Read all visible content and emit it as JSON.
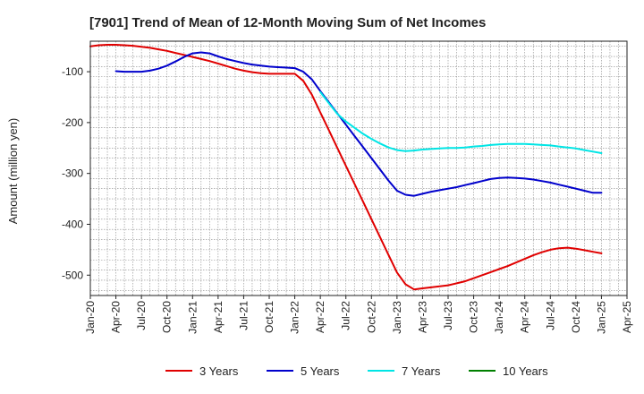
{
  "chart_data": {
    "type": "line",
    "title": "[7901]  Trend of Mean of 12-Month Moving Sum of Net Incomes",
    "ylabel": "Amount (million yen)",
    "xlabel": "",
    "x_ticks": [
      "Jan-20",
      "Apr-20",
      "Jul-20",
      "Oct-20",
      "Jan-21",
      "Apr-21",
      "Jul-21",
      "Oct-21",
      "Jan-22",
      "Apr-22",
      "Jul-22",
      "Oct-22",
      "Jan-23",
      "Apr-23",
      "Jul-23",
      "Oct-23",
      "Jan-24",
      "Apr-24",
      "Jul-24",
      "Oct-24",
      "Jan-25",
      "Apr-25"
    ],
    "y_ticks": [
      -100,
      -200,
      -300,
      -400,
      -500
    ],
    "ylim": [
      -540,
      -40
    ],
    "grid": true,
    "legend_position": "bottom",
    "series": [
      {
        "name": "3 Years",
        "color": "#e00000",
        "x": [
          "Jan-20",
          "Feb-20",
          "Mar-20",
          "Apr-20",
          "May-20",
          "Jun-20",
          "Jul-20",
          "Aug-20",
          "Sep-20",
          "Oct-20",
          "Nov-20",
          "Dec-20",
          "Jan-21",
          "Feb-21",
          "Mar-21",
          "Apr-21",
          "May-21",
          "Jun-21",
          "Jul-21",
          "Aug-21",
          "Sep-21",
          "Oct-21",
          "Nov-21",
          "Dec-21",
          "Jan-22",
          "Feb-22",
          "Mar-22",
          "Apr-22",
          "May-22",
          "Jun-22",
          "Jul-22",
          "Aug-22",
          "Sep-22",
          "Oct-22",
          "Nov-22",
          "Dec-22",
          "Jan-23",
          "Feb-23",
          "Mar-23",
          "Apr-23",
          "May-23",
          "Jun-23",
          "Jul-23",
          "Aug-23",
          "Sep-23",
          "Oct-23",
          "Nov-23",
          "Dec-23",
          "Jan-24",
          "Feb-24",
          "Mar-24",
          "Apr-24",
          "May-24",
          "Jun-24",
          "Jul-24",
          "Aug-24",
          "Sep-24",
          "Oct-24",
          "Nov-24",
          "Dec-24",
          "Jan-25"
        ],
        "values": [
          -50,
          -48,
          -47,
          -47,
          -48,
          -49,
          -51,
          -53,
          -56,
          -59,
          -63,
          -67,
          -71,
          -75,
          -79,
          -84,
          -89,
          -94,
          -98,
          -101,
          -103,
          -104,
          -104,
          -104,
          -104,
          -118,
          -145,
          -180,
          -215,
          -250,
          -285,
          -320,
          -355,
          -390,
          -425,
          -460,
          -495,
          -518,
          -528,
          -526,
          -524,
          -522,
          -520,
          -516,
          -512,
          -506,
          -500,
          -494,
          -488,
          -482,
          -475,
          -468,
          -461,
          -455,
          -450,
          -447,
          -446,
          -448,
          -451,
          -454,
          -457
        ]
      },
      {
        "name": "5 Years",
        "color": "#0000cc",
        "x": [
          "Apr-20",
          "May-20",
          "Jun-20",
          "Jul-20",
          "Aug-20",
          "Sep-20",
          "Oct-20",
          "Nov-20",
          "Dec-20",
          "Jan-21",
          "Feb-21",
          "Mar-21",
          "Apr-21",
          "May-21",
          "Jun-21",
          "Jul-21",
          "Aug-21",
          "Sep-21",
          "Oct-21",
          "Nov-21",
          "Dec-21",
          "Jan-22",
          "Feb-22",
          "Mar-22",
          "Apr-22",
          "May-22",
          "Jun-22",
          "Jul-22",
          "Aug-22",
          "Sep-22",
          "Oct-22",
          "Nov-22",
          "Dec-22",
          "Jan-23",
          "Feb-23",
          "Mar-23",
          "Apr-23",
          "May-23",
          "Jun-23",
          "Jul-23",
          "Aug-23",
          "Sep-23",
          "Oct-23",
          "Nov-23",
          "Dec-23",
          "Jan-24",
          "Feb-24",
          "Mar-24",
          "Apr-24",
          "May-24",
          "Jun-24",
          "Jul-24",
          "Aug-24",
          "Sep-24",
          "Oct-24",
          "Nov-24",
          "Dec-24",
          "Jan-25"
        ],
        "values": [
          -99,
          -100,
          -100,
          -100,
          -98,
          -94,
          -88,
          -80,
          -71,
          -64,
          -62,
          -64,
          -70,
          -75,
          -79,
          -83,
          -86,
          -88,
          -90,
          -91,
          -92,
          -93,
          -100,
          -115,
          -138,
          -160,
          -182,
          -204,
          -226,
          -248,
          -270,
          -292,
          -314,
          -334,
          -342,
          -344,
          -340,
          -336,
          -333,
          -330,
          -327,
          -323,
          -319,
          -315,
          -311,
          -309,
          -308,
          -309,
          -310,
          -312,
          -315,
          -318,
          -322,
          -326,
          -330,
          -334,
          -338,
          -338
        ]
      },
      {
        "name": "7 Years",
        "color": "#00e5e5",
        "x": [
          "Apr-22",
          "May-22",
          "Jun-22",
          "Jul-22",
          "Aug-22",
          "Sep-22",
          "Oct-22",
          "Nov-22",
          "Dec-22",
          "Jan-23",
          "Feb-23",
          "Mar-23",
          "Apr-23",
          "May-23",
          "Jun-23",
          "Jul-23",
          "Aug-23",
          "Sep-23",
          "Oct-23",
          "Nov-23",
          "Dec-23",
          "Jan-24",
          "Feb-24",
          "Mar-24",
          "Apr-24",
          "May-24",
          "Jun-24",
          "Jul-24",
          "Aug-24",
          "Sep-24",
          "Oct-24",
          "Nov-24",
          "Dec-24",
          "Jan-25"
        ],
        "values": [
          -140,
          -162,
          -183,
          -198,
          -210,
          -222,
          -232,
          -241,
          -249,
          -254,
          -256,
          -255,
          -253,
          -252,
          -251,
          -250,
          -250,
          -249,
          -247,
          -246,
          -244,
          -243,
          -242,
          -242,
          -242,
          -243,
          -244,
          -245,
          -247,
          -249,
          -251,
          -254,
          -257,
          -260
        ]
      },
      {
        "name": "10 Years",
        "color": "#008000",
        "x": [],
        "values": []
      }
    ]
  }
}
